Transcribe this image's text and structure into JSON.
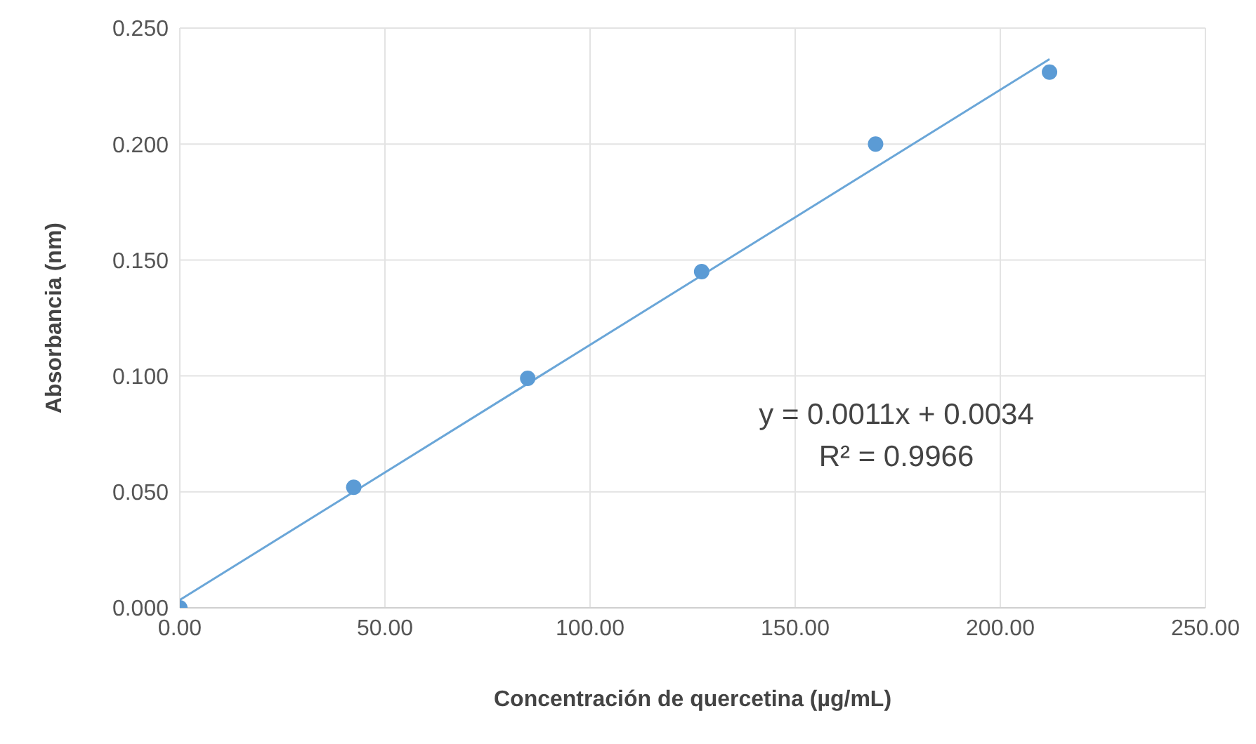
{
  "chart_data": {
    "type": "scatter",
    "xlabel": "Concentración de quercetina (µg/mL)",
    "ylabel": "Absorbancia (nm)",
    "x": [
      0,
      42.4,
      84.8,
      127.2,
      169.6,
      212
    ],
    "series": [
      {
        "marker": "circle",
        "color": "#5b9bd5",
        "values": [
          0.0,
          0.052,
          0.099,
          0.145,
          0.2,
          0.231
        ]
      },
      {
        "type": "line",
        "marker": "none",
        "color": "#6aa6d8",
        "x": [
          0,
          212
        ],
        "values": [
          0.0034,
          0.2366
        ]
      }
    ],
    "xlim": [
      0,
      250
    ],
    "xticks": [
      {
        "value": 0,
        "label": "0.00"
      },
      {
        "value": 50,
        "label": "50.00"
      },
      {
        "value": 100,
        "label": "100.00"
      },
      {
        "value": 150,
        "label": "150.00"
      },
      {
        "value": 200,
        "label": "200.00"
      },
      {
        "value": 250,
        "label": "250.00"
      }
    ],
    "ylim": [
      0,
      0.25
    ],
    "yticks": [
      {
        "value": 0,
        "label": "0.000"
      },
      {
        "value": 0.05,
        "label": "0.050"
      },
      {
        "value": 0.1,
        "label": "0.100"
      },
      {
        "value": 0.15,
        "label": "0.150"
      },
      {
        "value": 0.2,
        "label": "0.200"
      },
      {
        "value": 0.25,
        "label": "0.250"
      }
    ],
    "grid": true,
    "annotations": [
      "y = 0.0011x + 0.0034",
      "R² = 0.9966"
    ]
  }
}
